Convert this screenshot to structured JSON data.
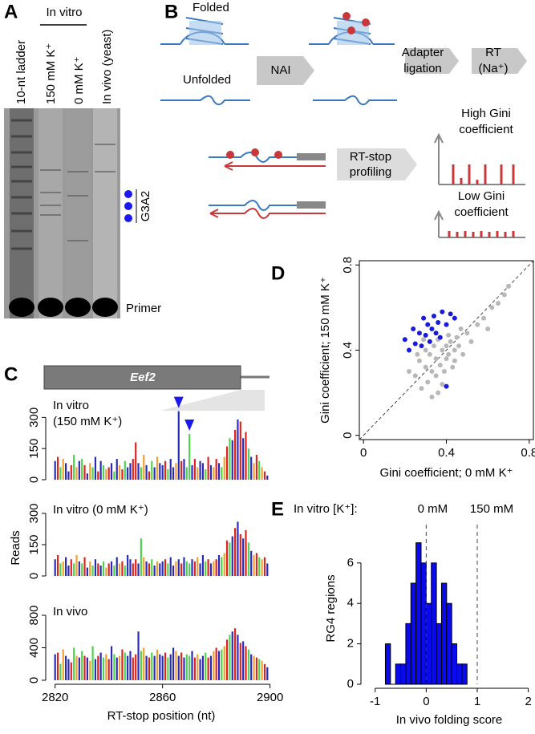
{
  "panel_labels": [
    "A",
    "B",
    "C",
    "D",
    "E"
  ],
  "gel": {
    "lanes": [
      "10-nt ladder",
      "150 mM K⁺",
      "0 mM K⁺",
      "In vivo (yeast)"
    ],
    "group_label": "In vitro",
    "band_label": "G3A2",
    "primer_label": "Primer"
  },
  "diagram": {
    "folded": "Folded",
    "unfolded": "Unfolded",
    "nai": "NAI",
    "adapter": [
      "Adapter",
      "ligation"
    ],
    "rt": [
      "RT",
      "(Na⁺)"
    ],
    "profiling": [
      "RT-stop",
      "profiling"
    ],
    "high": [
      "High Gini",
      "coefficient"
    ],
    "low": [
      "Low Gini",
      "coefficient"
    ]
  },
  "panel_c": {
    "gene": "Eef2",
    "ylabel": "Reads",
    "palette": [
      "#e0221c",
      "#4cd44c",
      "#2a2ab8",
      "#f0a030"
    ],
    "color_index": [
      2,
      0,
      1,
      3,
      2,
      2,
      0,
      1,
      3,
      2,
      1,
      0,
      2,
      3,
      1,
      2,
      0,
      2,
      1,
      3,
      0,
      2,
      1,
      2,
      3,
      0,
      1,
      2,
      2,
      0,
      0,
      2,
      1,
      3,
      2,
      0,
      1,
      2,
      3,
      2,
      2,
      0,
      1,
      2,
      2,
      3,
      2,
      0,
      2,
      1,
      1,
      2,
      0,
      3,
      2,
      2,
      1,
      0,
      2,
      3,
      0,
      2,
      1,
      3,
      0,
      1,
      2,
      0,
      2,
      0,
      2,
      0,
      1,
      2,
      3,
      0,
      1,
      3,
      0,
      2
    ]
  },
  "chart_data": [
    {
      "type": "bar",
      "annotation": [
        "In vitro",
        "(150 mM K⁺)"
      ],
      "markers": [
        2866,
        2870
      ],
      "x": [
        2820,
        2821,
        2822,
        2823,
        2824,
        2825,
        2826,
        2827,
        2828,
        2829,
        2830,
        2831,
        2832,
        2833,
        2834,
        2835,
        2836,
        2837,
        2838,
        2839,
        2840,
        2841,
        2842,
        2843,
        2844,
        2845,
        2846,
        2847,
        2848,
        2849,
        2850,
        2851,
        2852,
        2853,
        2854,
        2855,
        2856,
        2857,
        2858,
        2859,
        2860,
        2861,
        2862,
        2863,
        2864,
        2865,
        2866,
        2867,
        2868,
        2869,
        2870,
        2871,
        2872,
        2873,
        2874,
        2875,
        2876,
        2877,
        2878,
        2879,
        2880,
        2881,
        2882,
        2883,
        2884,
        2885,
        2886,
        2887,
        2888,
        2889,
        2890,
        2891,
        2892,
        2893,
        2894,
        2895,
        2896,
        2897,
        2898,
        2899
      ],
      "values": [
        90,
        110,
        60,
        100,
        80,
        40,
        70,
        120,
        60,
        90,
        100,
        70,
        30,
        80,
        60,
        110,
        40,
        90,
        70,
        50,
        60,
        80,
        40,
        100,
        70,
        50,
        90,
        60,
        80,
        100,
        180,
        80,
        60,
        120,
        70,
        40,
        90,
        60,
        110,
        80,
        70,
        90,
        50,
        100,
        60,
        80,
        330,
        90,
        100,
        60,
        220,
        70,
        100,
        60,
        90,
        80,
        50,
        110,
        70,
        60,
        100,
        80,
        60,
        110,
        160,
        200,
        190,
        240,
        290,
        280,
        200,
        230,
        150,
        110,
        80,
        120,
        90,
        60,
        40,
        20
      ],
      "xlim": [
        2818,
        2901
      ],
      "ylim": [
        0,
        340
      ],
      "yticks": [
        0,
        150,
        300
      ]
    },
    {
      "type": "bar",
      "annotation": [
        "In vitro (0 mM K⁺)"
      ],
      "x": [
        2820,
        2821,
        2822,
        2823,
        2824,
        2825,
        2826,
        2827,
        2828,
        2829,
        2830,
        2831,
        2832,
        2833,
        2834,
        2835,
        2836,
        2837,
        2838,
        2839,
        2840,
        2841,
        2842,
        2843,
        2844,
        2845,
        2846,
        2847,
        2848,
        2849,
        2850,
        2851,
        2852,
        2853,
        2854,
        2855,
        2856,
        2857,
        2858,
        2859,
        2860,
        2861,
        2862,
        2863,
        2864,
        2865,
        2866,
        2867,
        2868,
        2869,
        2870,
        2871,
        2872,
        2873,
        2874,
        2875,
        2876,
        2877,
        2878,
        2879,
        2880,
        2881,
        2882,
        2883,
        2884,
        2885,
        2886,
        2887,
        2888,
        2889,
        2890,
        2891,
        2892,
        2893,
        2894,
        2895,
        2896,
        2897,
        2898,
        2899
      ],
      "values": [
        80,
        100,
        60,
        70,
        90,
        50,
        80,
        60,
        100,
        70,
        60,
        90,
        40,
        70,
        50,
        80,
        60,
        50,
        70,
        40,
        60,
        70,
        50,
        90,
        60,
        70,
        50,
        100,
        80,
        60,
        80,
        60,
        180,
        90,
        70,
        60,
        80,
        50,
        70,
        60,
        70,
        80,
        60,
        90,
        50,
        70,
        80,
        60,
        90,
        70,
        60,
        80,
        70,
        90,
        60,
        100,
        70,
        80,
        60,
        70,
        80,
        100,
        90,
        110,
        170,
        160,
        190,
        230,
        260,
        200,
        180,
        220,
        160,
        120,
        100,
        110,
        90,
        80,
        90,
        60
      ],
      "xlim": [
        2818,
        2901
      ],
      "ylim": [
        0,
        300
      ],
      "yticks": [
        0,
        150,
        300
      ]
    },
    {
      "type": "bar",
      "annotation": [
        "In vivo"
      ],
      "xlabel": "RT-stop position (nt)",
      "x": [
        2820,
        2821,
        2822,
        2823,
        2824,
        2825,
        2826,
        2827,
        2828,
        2829,
        2830,
        2831,
        2832,
        2833,
        2834,
        2835,
        2836,
        2837,
        2838,
        2839,
        2840,
        2841,
        2842,
        2843,
        2844,
        2845,
        2846,
        2847,
        2848,
        2849,
        2850,
        2851,
        2852,
        2853,
        2854,
        2855,
        2856,
        2857,
        2858,
        2859,
        2860,
        2861,
        2862,
        2863,
        2864,
        2865,
        2866,
        2867,
        2868,
        2869,
        2870,
        2871,
        2872,
        2873,
        2874,
        2875,
        2876,
        2877,
        2878,
        2879,
        2880,
        2881,
        2882,
        2883,
        2884,
        2885,
        2886,
        2887,
        2888,
        2889,
        2890,
        2891,
        2892,
        2893,
        2894,
        2895,
        2896,
        2897,
        2898,
        2899
      ],
      "values": [
        320,
        340,
        200,
        380,
        300,
        260,
        220,
        400,
        300,
        280,
        360,
        300,
        280,
        240,
        420,
        260,
        300,
        340,
        280,
        320,
        260,
        420,
        320,
        280,
        300,
        380,
        340,
        300,
        360,
        280,
        320,
        600,
        360,
        400,
        300,
        280,
        340,
        300,
        380,
        320,
        300,
        340,
        280,
        320,
        400,
        360,
        300,
        340,
        280,
        320,
        300,
        360,
        280,
        320,
        260,
        300,
        340,
        280,
        300,
        360,
        400,
        360,
        380,
        420,
        500,
        560,
        600,
        640,
        560,
        460,
        480,
        420,
        380,
        320,
        300,
        280,
        260,
        240,
        200,
        160
      ],
      "xlim": [
        2818,
        2901
      ],
      "xticks": [
        2820,
        2860,
        2900
      ],
      "ylim": [
        0,
        800
      ],
      "yticks": [
        0,
        400,
        800
      ]
    },
    {
      "type": "scatter",
      "xlabel": "Gini coefficient; 0 mM K⁺",
      "ylabel": "Gini coefficient; 150 mM K⁺",
      "xlim": [
        -0.02,
        0.82
      ],
      "ylim": [
        -0.02,
        0.82
      ],
      "xticks": [
        0,
        0.4,
        0.8
      ],
      "yticks": [
        0,
        0.4,
        0.8
      ],
      "diagonal": true,
      "box": true,
      "series": [
        {
          "color": "#b8b8b8",
          "x": [
            0.22,
            0.25,
            0.27,
            0.28,
            0.3,
            0.3,
            0.31,
            0.32,
            0.33,
            0.34,
            0.35,
            0.35,
            0.36,
            0.37,
            0.38,
            0.38,
            0.39,
            0.4,
            0.4,
            0.41,
            0.42,
            0.43,
            0.44,
            0.45,
            0.46,
            0.47,
            0.48,
            0.5,
            0.52,
            0.55,
            0.58,
            0.6,
            0.62,
            0.65,
            0.68,
            0.7,
            0.33,
            0.36,
            0.29,
            0.41,
            0.26,
            0.44
          ],
          "values": [
            0.3,
            0.28,
            0.35,
            0.22,
            0.4,
            0.32,
            0.25,
            0.38,
            0.3,
            0.42,
            0.36,
            0.28,
            0.45,
            0.33,
            0.4,
            0.24,
            0.3,
            0.42,
            0.36,
            0.38,
            0.44,
            0.32,
            0.4,
            0.46,
            0.42,
            0.5,
            0.38,
            0.48,
            0.44,
            0.52,
            0.55,
            0.5,
            0.6,
            0.62,
            0.66,
            0.7,
            0.18,
            0.2,
            0.45,
            0.47,
            0.38,
            0.35
          ]
        },
        {
          "color": "#1a1adb",
          "x": [
            0.2,
            0.22,
            0.24,
            0.25,
            0.27,
            0.28,
            0.29,
            0.3,
            0.31,
            0.32,
            0.33,
            0.34,
            0.35,
            0.36,
            0.37,
            0.38,
            0.4,
            0.42,
            0.44,
            0.4
          ],
          "values": [
            0.45,
            0.4,
            0.5,
            0.43,
            0.48,
            0.42,
            0.55,
            0.47,
            0.52,
            0.44,
            0.5,
            0.56,
            0.48,
            0.53,
            0.46,
            0.58,
            0.52,
            0.57,
            0.55,
            0.23
          ]
        }
      ]
    },
    {
      "type": "histogram",
      "xlabel": "In vivo folding score",
      "ylabel": "RG4 regions",
      "color": "#0a0aee",
      "bins": [
        -0.8,
        -0.7,
        -0.6,
        -0.5,
        -0.4,
        -0.3,
        -0.2,
        -0.1,
        0,
        0.1,
        0.2,
        0.3,
        0.4,
        0.5,
        0.6,
        0.7,
        0.8
      ],
      "values": [
        2,
        0,
        1,
        1,
        3,
        5,
        7,
        6,
        4,
        6,
        3,
        5,
        4,
        2,
        1,
        1
      ],
      "xlim": [
        -1.2,
        2.1
      ],
      "xticks": [
        -1,
        0,
        1,
        2
      ],
      "ylim": [
        0,
        7.5
      ],
      "yticks": [
        0,
        2,
        4,
        6
      ],
      "legend_title": "In vitro [K⁺]:",
      "vlines": [
        0,
        1
      ],
      "vline_labels": [
        "0 mM",
        "150 mM"
      ]
    }
  ]
}
